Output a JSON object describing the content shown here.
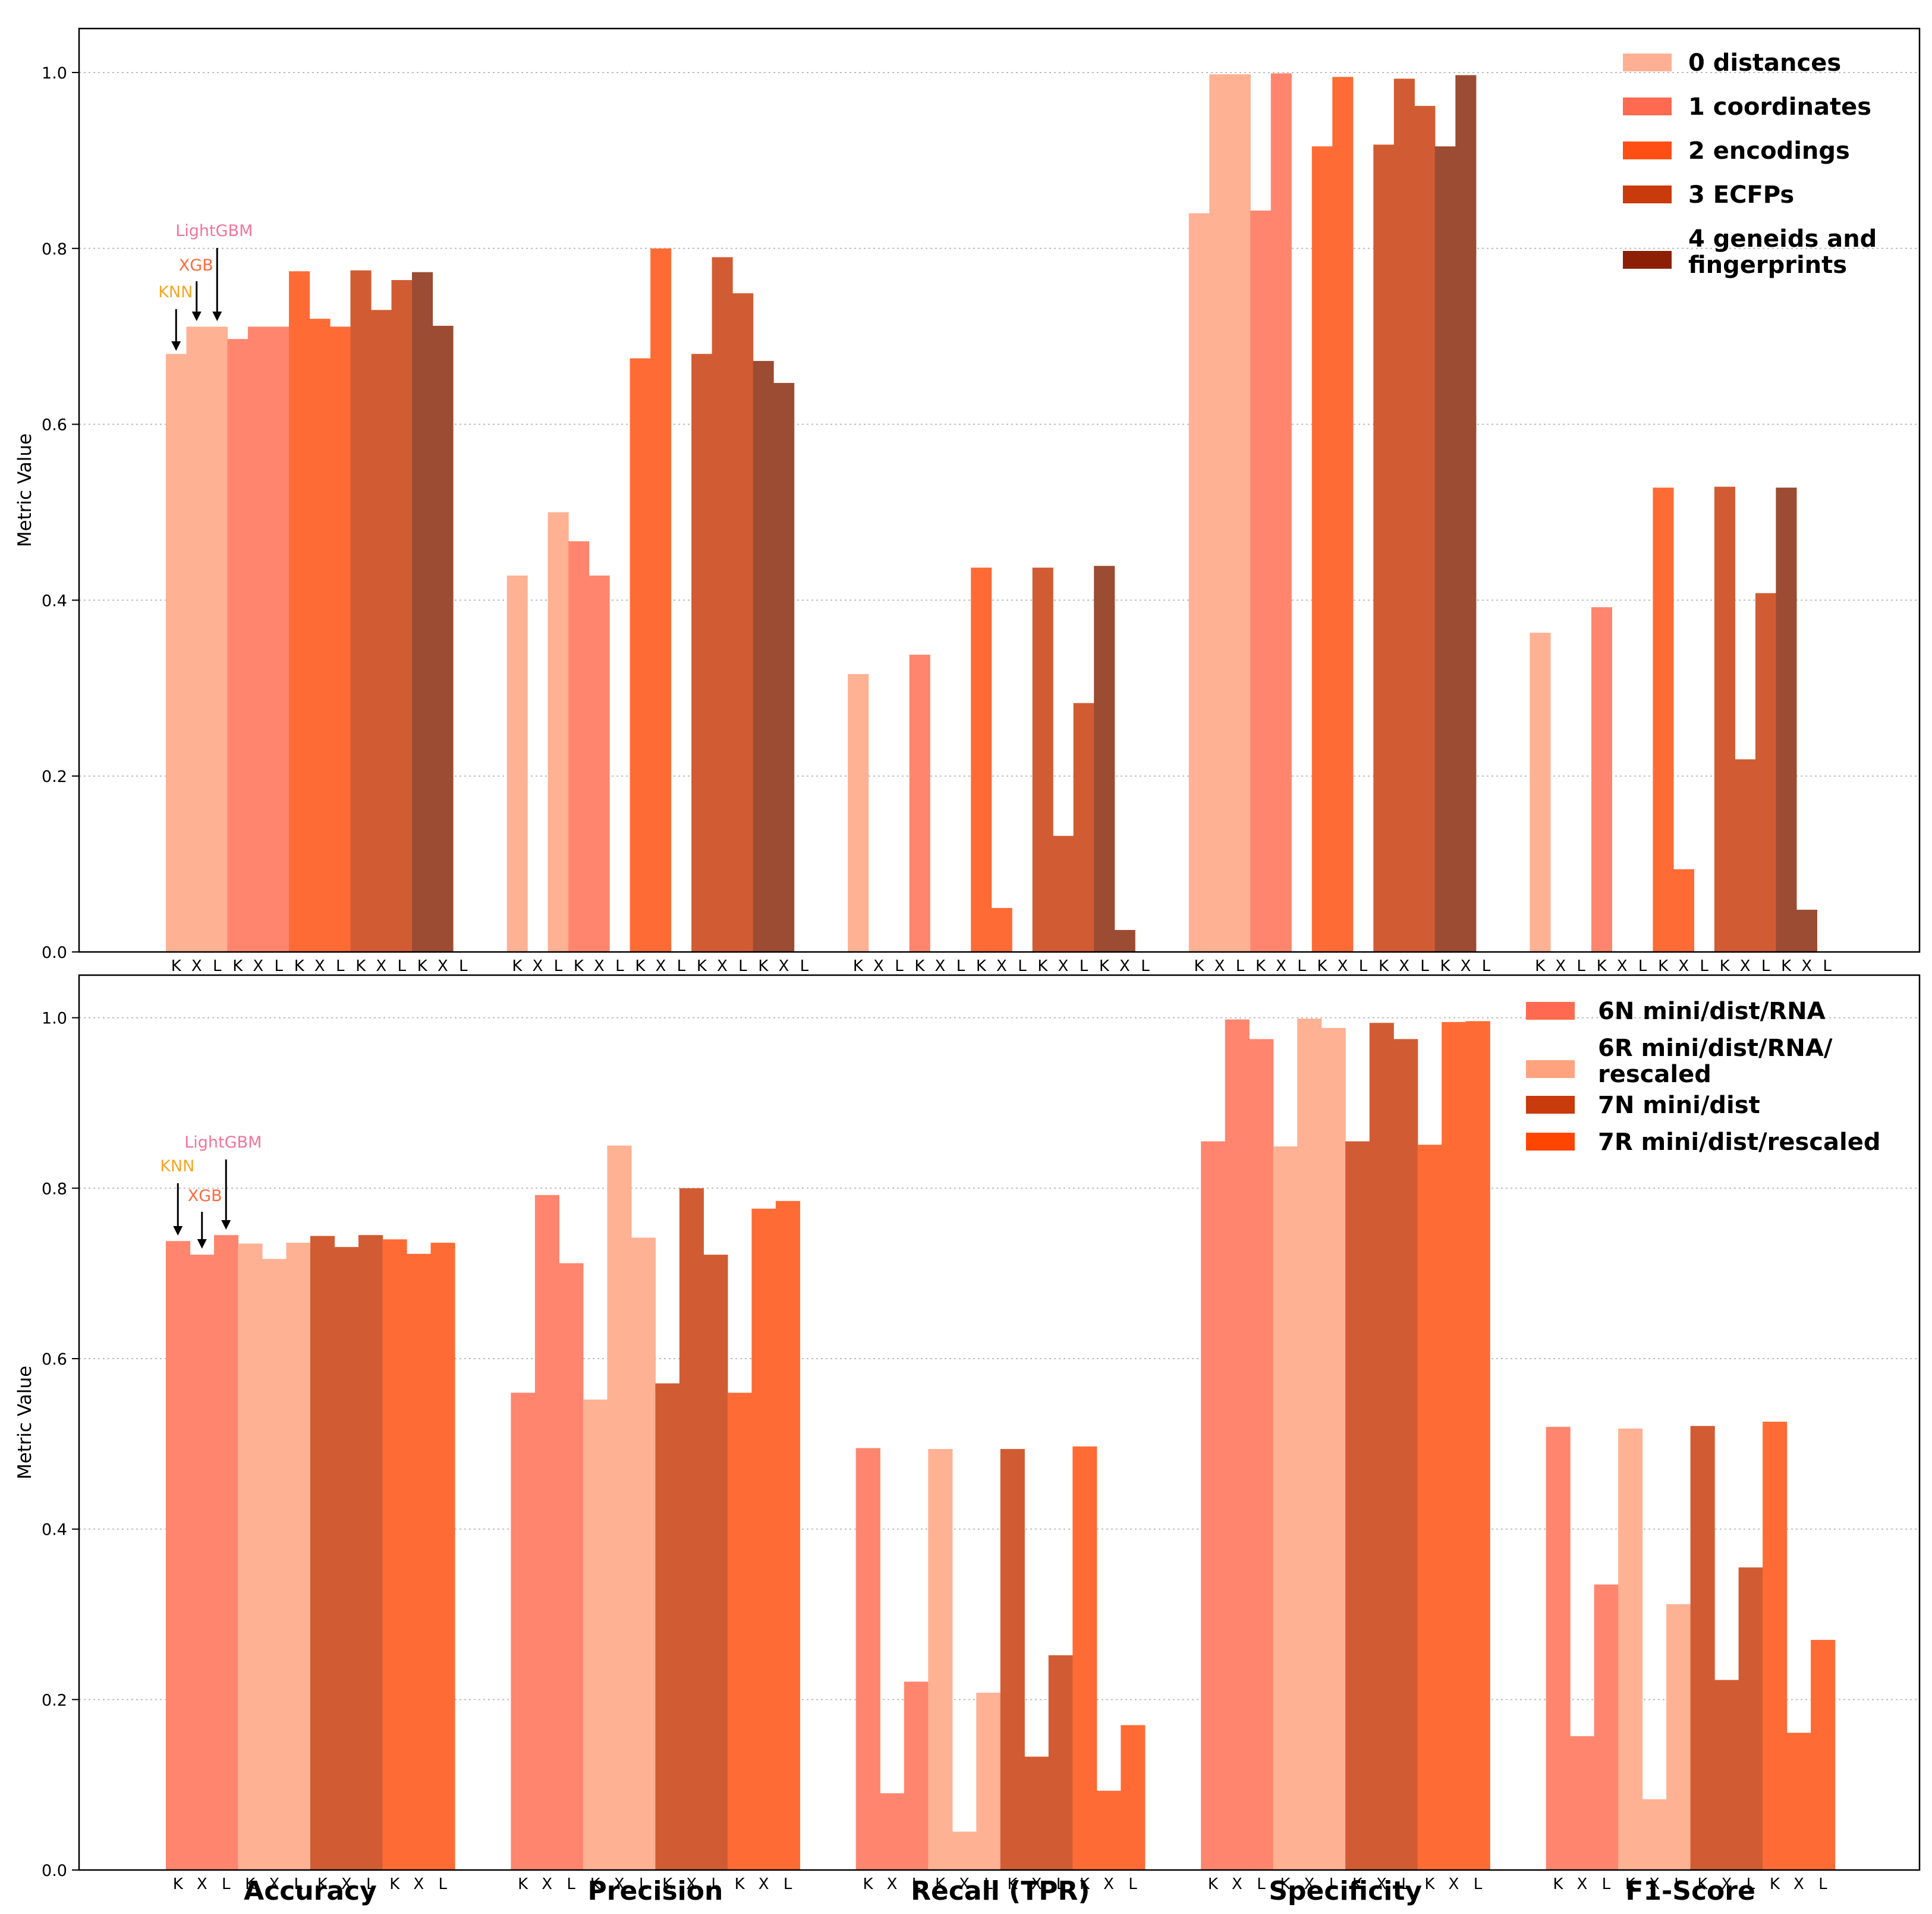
{
  "ylabel": "Metric Value",
  "metrics": [
    "Accuracy",
    "Precision",
    "Recall (TPR)",
    "Specificity",
    "F1-Score"
  ],
  "model_letters": [
    "K",
    "X",
    "L"
  ],
  "model_annotations": [
    {
      "label": "KNN",
      "color": "#f5a623"
    },
    {
      "label": "XGB",
      "color": "#ff6a3d"
    },
    {
      "label": "LightGBM",
      "color": "#f2749a"
    }
  ],
  "chart_data": [
    {
      "type": "bar",
      "panel": "top",
      "ylabel": "Metric Value",
      "ylim": [
        0,
        1.05
      ],
      "yticks": [
        0.0,
        0.2,
        0.4,
        0.6,
        0.8,
        1.0
      ],
      "yticklabels": [
        "0.0",
        "0.2",
        "0.4",
        "0.6",
        "0.8",
        "1.0"
      ],
      "grid": "y-dotted",
      "legend_position": "top-right",
      "categories": [
        "Accuracy",
        "Precision",
        "Recall (TPR)",
        "Specificity",
        "F1-Score"
      ],
      "models": [
        "K",
        "X",
        "L"
      ],
      "series": [
        {
          "name": "0 distances",
          "color": "#ffb094",
          "barcolor": "#ffb194",
          "values": [
            [
              0.68,
              0.711,
              0.711
            ],
            [
              0.428,
              0.0,
              0.5
            ],
            [
              0.316,
              0.0,
              0.0
            ],
            [
              0.84,
              0.998,
              0.998
            ],
            [
              0.363,
              0.0,
              0.0
            ]
          ]
        },
        {
          "name": "1 coordinates",
          "color": "#ff6a50",
          "barcolor": "#ff856e",
          "values": [
            [
              0.697,
              0.711,
              0.711
            ],
            [
              0.467,
              0.428,
              0.0
            ],
            [
              0.338,
              0.0,
              0.0
            ],
            [
              0.843,
              0.999,
              0.0
            ],
            [
              0.392,
              0.0,
              0.0
            ]
          ]
        },
        {
          "name": "2 encodings",
          "color": "#ff4f14",
          "barcolor": "#ff6b35",
          "values": [
            [
              0.774,
              0.72,
              0.711
            ],
            [
              0.675,
              0.8,
              0.0
            ],
            [
              0.437,
              0.05,
              0.0
            ],
            [
              0.916,
              0.995,
              0.0
            ],
            [
              0.528,
              0.094,
              0.0
            ]
          ]
        },
        {
          "name": "3 ECFPs",
          "color": "#c93a0c",
          "barcolor": "#d15c33",
          "values": [
            [
              0.775,
              0.73,
              0.764
            ],
            [
              0.68,
              0.79,
              0.749
            ],
            [
              0.437,
              0.132,
              0.283
            ],
            [
              0.918,
              0.993,
              0.962
            ],
            [
              0.529,
              0.219,
              0.408
            ]
          ]
        },
        {
          "name": "4 geneids and fingerprints",
          "legend_lines": [
            "4 geneids and",
            "fingerprints"
          ],
          "color": "#8b2005",
          "barcolor": "#9b4c33",
          "values": [
            [
              0.773,
              0.712,
              0.0
            ],
            [
              0.672,
              0.647,
              0.0
            ],
            [
              0.439,
              0.025,
              0.0
            ],
            [
              0.916,
              0.997,
              0.0
            ],
            [
              0.528,
              0.048,
              0.0
            ]
          ]
        }
      ]
    },
    {
      "type": "bar",
      "panel": "bottom",
      "ylabel": "Metric Value",
      "ylim": [
        0,
        1.05
      ],
      "yticks": [
        0.0,
        0.2,
        0.4,
        0.6,
        0.8,
        1.0
      ],
      "yticklabels": [
        "0.0",
        "0.2",
        "0.4",
        "0.6",
        "0.8",
        "1.0"
      ],
      "grid": "y-dotted",
      "legend_position": "top-right",
      "categories": [
        "Accuracy",
        "Precision",
        "Recall (TPR)",
        "Specificity",
        "F1-Score"
      ],
      "models": [
        "K",
        "X",
        "L"
      ],
      "series": [
        {
          "name": "6N mini/dist/RNA",
          "color": "#ff6a50",
          "barcolor": "#ff856e",
          "values": [
            [
              0.738,
              0.722,
              0.745
            ],
            [
              0.56,
              0.792,
              0.712
            ],
            [
              0.495,
              0.09,
              0.221
            ],
            [
              0.855,
              0.998,
              0.975
            ],
            [
              0.52,
              0.157,
              0.335
            ]
          ]
        },
        {
          "name": "6R mini/dist/RNA/rescaled",
          "legend_lines": [
            "6R mini/dist/RNA/",
            "rescaled"
          ],
          "color": "#ffa37f",
          "barcolor": "#ffb194",
          "values": [
            [
              0.735,
              0.717,
              0.736
            ],
            [
              0.552,
              0.85,
              0.742
            ],
            [
              0.494,
              0.045,
              0.208
            ],
            [
              0.849,
              0.999,
              0.988
            ],
            [
              0.518,
              0.083,
              0.312
            ]
          ]
        },
        {
          "name": "7N mini/dist",
          "color": "#c93a0c",
          "barcolor": "#d15c33",
          "values": [
            [
              0.744,
              0.731,
              0.745
            ],
            [
              0.571,
              0.8,
              0.722
            ],
            [
              0.494,
              0.133,
              0.252
            ],
            [
              0.855,
              0.994,
              0.975
            ],
            [
              0.521,
              0.223,
              0.355
            ]
          ]
        },
        {
          "name": "7R mini/dist/rescaled",
          "color": "#ff4500",
          "barcolor": "#ff6b35",
          "values": [
            [
              0.74,
              0.723,
              0.736
            ],
            [
              0.56,
              0.776,
              0.785
            ],
            [
              0.497,
              0.093,
              0.17
            ],
            [
              0.851,
              0.995,
              0.996
            ],
            [
              0.526,
              0.161,
              0.27
            ]
          ]
        }
      ]
    }
  ]
}
